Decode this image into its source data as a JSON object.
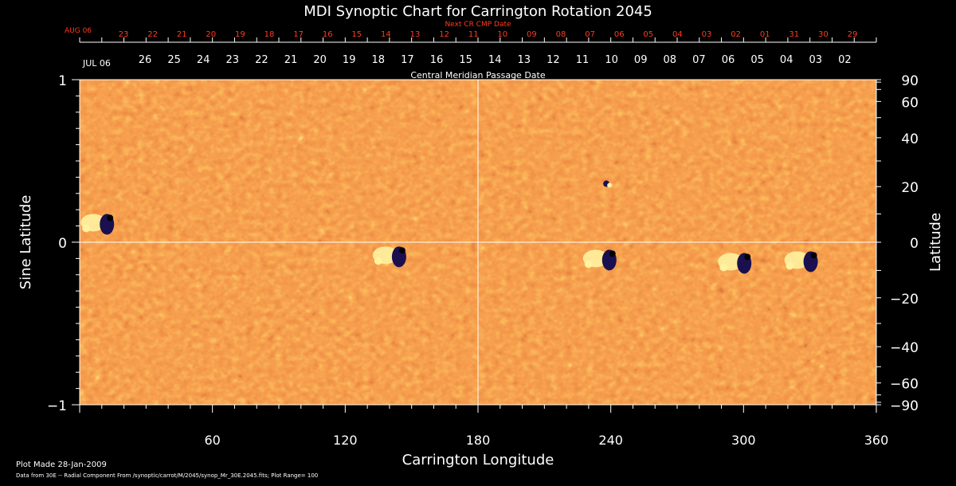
{
  "chart_data": {
    "type": "heatmap",
    "title": "MDI Synoptic Chart for Carrington Rotation 2045",
    "xlabel": "Carrington Longitude",
    "ylabel_left": "Sine Latitude",
    "ylabel_right": "Latitude",
    "xlim": [
      0,
      360
    ],
    "ylim": [
      -1,
      1
    ],
    "x_ticks": [
      "60",
      "120",
      "180",
      "240",
      "300",
      "360"
    ],
    "y_ticks_left": [
      {
        "value": 1,
        "label": "1"
      },
      {
        "value": 0,
        "label": "0"
      },
      {
        "value": -1,
        "label": "−1"
      }
    ],
    "y_ticks_right": [
      {
        "deg": 90,
        "label": "90"
      },
      {
        "deg": 60,
        "label": "60"
      },
      {
        "deg": 40,
        "label": "40"
      },
      {
        "deg": 20,
        "label": "20"
      },
      {
        "deg": 0,
        "label": "0"
      },
      {
        "deg": -20,
        "label": "−20"
      },
      {
        "deg": -40,
        "label": "−40"
      },
      {
        "deg": -60,
        "label": "−60"
      },
      {
        "deg": -90,
        "label": "−90"
      }
    ],
    "top_axis_upper": {
      "title": "Next CR CMP Date",
      "month_label": "AUG 06",
      "days": [
        "23",
        "22",
        "21",
        "20",
        "19",
        "18",
        "17",
        "16",
        "15",
        "14",
        "13",
        "12",
        "11",
        "10",
        "09",
        "08",
        "07",
        "06",
        "05",
        "04",
        "03",
        "02",
        "01",
        "31",
        "30",
        "29"
      ]
    },
    "top_axis_lower": {
      "title": "Central Meridian Passage Date",
      "month_label": "JUL 06",
      "days": [
        "26",
        "25",
        "24",
        "23",
        "22",
        "21",
        "20",
        "19",
        "18",
        "17",
        "16",
        "15",
        "14",
        "13",
        "12",
        "11",
        "10",
        "09",
        "08",
        "07",
        "06",
        "05",
        "04",
        "03",
        "02"
      ]
    },
    "colors": {
      "background": "#000000",
      "field_base": "#e8501a",
      "negative_polarity": "#1a1050",
      "positive_polarity": "#fff2a0",
      "label_red": "#ff3b1f"
    },
    "features": [
      {
        "type": "active-region",
        "lon": 8,
        "sinlat": 0.12
      },
      {
        "type": "active-region",
        "lon": 140,
        "sinlat": -0.08
      },
      {
        "type": "active-region",
        "lon": 235,
        "sinlat": -0.1
      },
      {
        "type": "active-region",
        "lon": 296,
        "sinlat": -0.12
      },
      {
        "type": "active-region",
        "lon": 326,
        "sinlat": -0.11
      },
      {
        "type": "spot",
        "lon": 238,
        "sinlat": 0.36
      }
    ]
  },
  "footer": {
    "plot_made": "Plot Made 28-Jan-2009",
    "data_source": "Data from 30E -- Radial Component From /synoptic/carrot/M/2045/synop_Mr_30E.2045.fits; Plot Range= 100"
  }
}
